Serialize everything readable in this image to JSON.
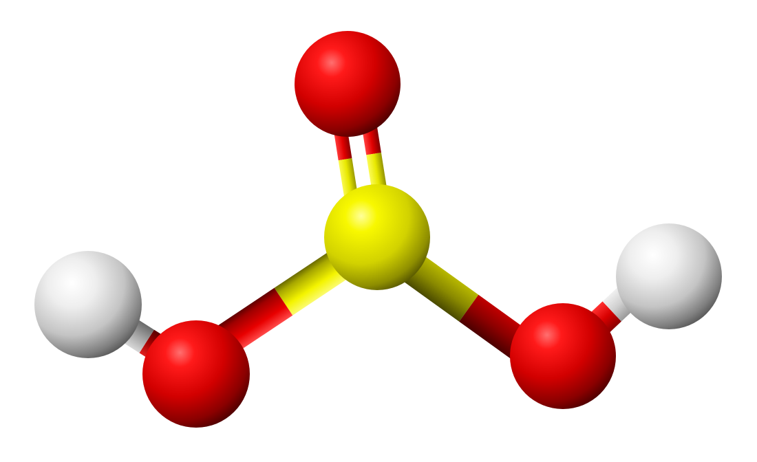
{
  "model": {
    "style": "ball-and-stick",
    "background": "#ffffff",
    "element_colors": {
      "S": "#e6e600",
      "O": "#d40000",
      "H": "#e8e8e8"
    },
    "atoms": [
      {
        "id": "O1",
        "element": "O"
      },
      {
        "id": "S1",
        "element": "S"
      },
      {
        "id": "O2",
        "element": "O"
      },
      {
        "id": "O3",
        "element": "O"
      },
      {
        "id": "H1",
        "element": "H"
      },
      {
        "id": "H2",
        "element": "H"
      }
    ],
    "bonds": [
      {
        "from": "S1",
        "to": "O1",
        "order": 2
      },
      {
        "from": "S1",
        "to": "O2",
        "order": 1
      },
      {
        "from": "S1",
        "to": "O3",
        "order": 1
      },
      {
        "from": "O2",
        "to": "H1",
        "order": 1
      },
      {
        "from": "O3",
        "to": "H2",
        "order": 1
      }
    ]
  }
}
